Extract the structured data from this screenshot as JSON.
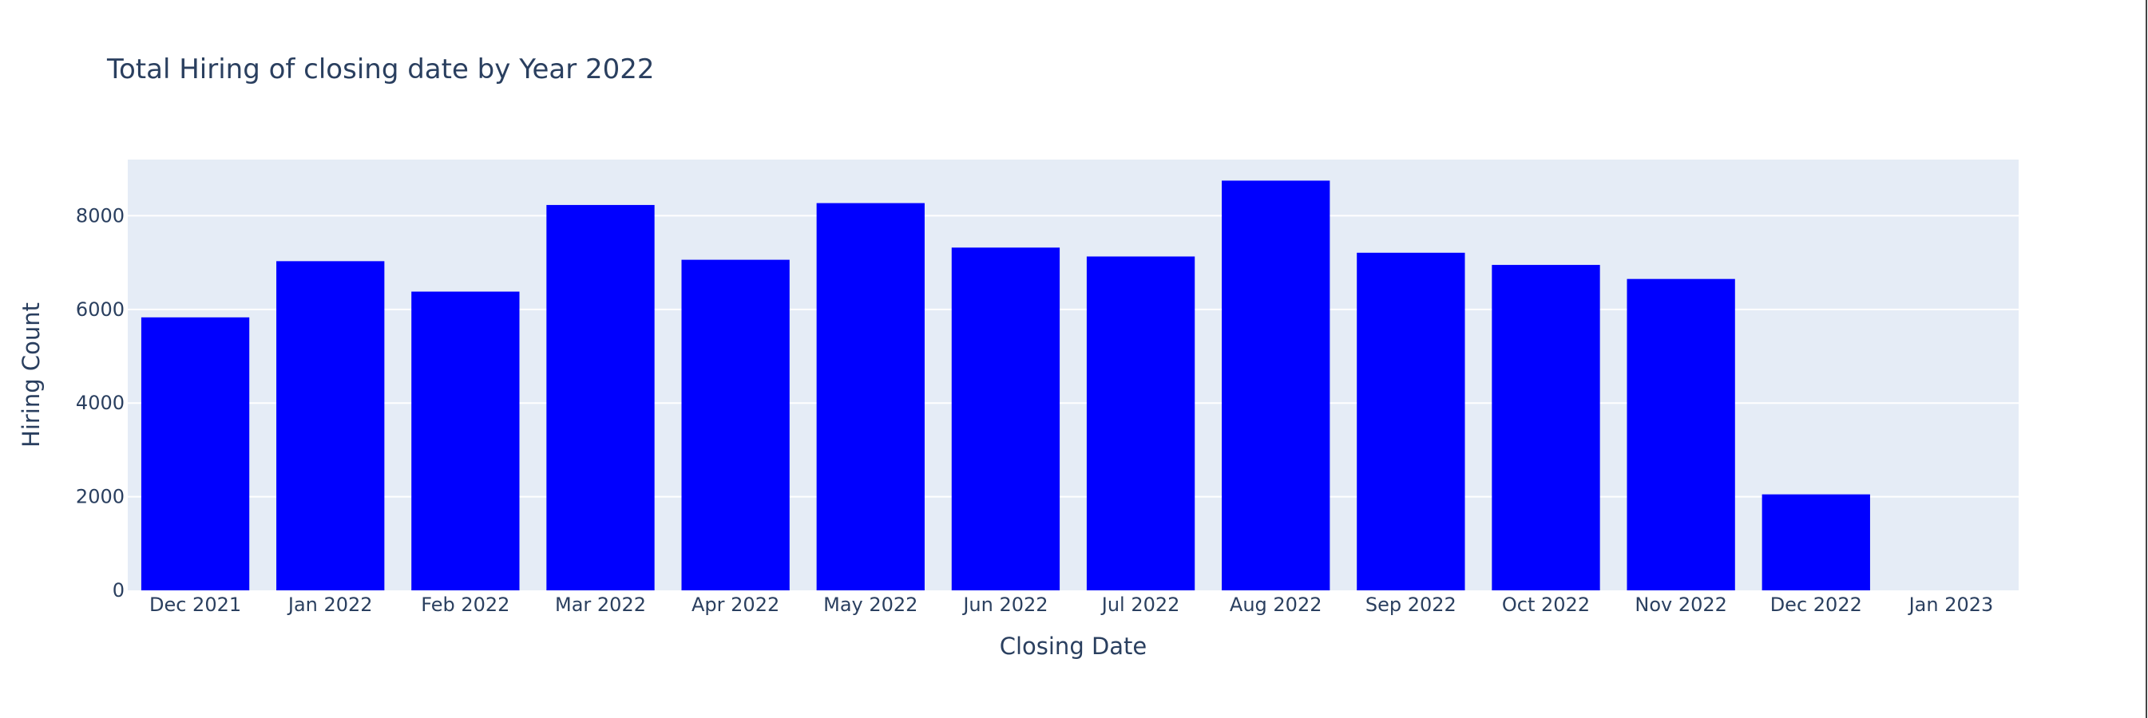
{
  "chart_data": {
    "type": "bar",
    "title": "Total Hiring of closing date by Year 2022",
    "xlabel": "Closing Date",
    "ylabel": "Hiring Count",
    "categories": [
      "Dec 2021",
      "Jan 2022",
      "Feb 2022",
      "Mar 2022",
      "Apr 2022",
      "May 2022",
      "Jun 2022",
      "Jul 2022",
      "Aug 2022",
      "Sep 2022",
      "Oct 2022",
      "Nov 2022",
      "Dec 2022",
      "Jan 2023"
    ],
    "values": [
      5830,
      7030,
      6380,
      8230,
      7060,
      8270,
      7320,
      7130,
      8750,
      7210,
      6950,
      6650,
      2050,
      0
    ],
    "ylim": [
      0,
      9200
    ],
    "yticks": [
      0,
      2000,
      4000,
      6000,
      8000
    ],
    "ytick_labels": [
      "0",
      "2000",
      "4000",
      "6000",
      "8000"
    ],
    "grid": true,
    "bar_color": "#0000ff",
    "plot_background": "#e5ecf6",
    "text_color": "#2a3f5f"
  }
}
